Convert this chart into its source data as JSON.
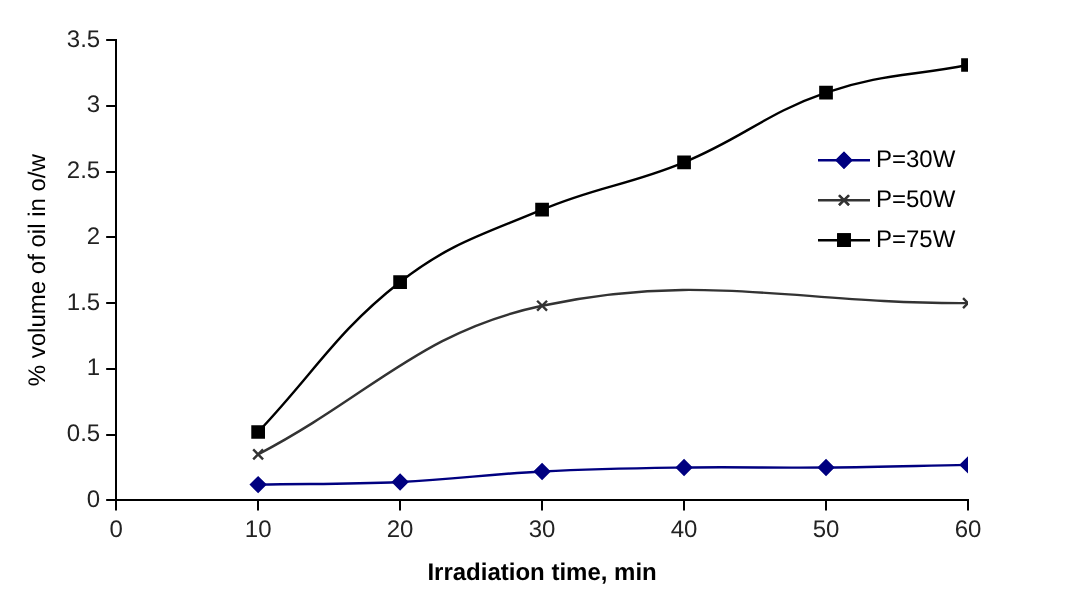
{
  "chart_data": {
    "type": "line",
    "xlabel": "Irradiation time, min",
    "ylabel": "% volume of oil in o/w",
    "x": [
      10,
      20,
      30,
      40,
      50,
      60
    ],
    "series": [
      {
        "name": "P=30W",
        "color": "#000080",
        "marker": "diamond",
        "values": [
          0.12,
          0.14,
          0.22,
          0.25,
          0.25,
          0.27
        ]
      },
      {
        "name": "P=50W",
        "color": "#333333",
        "marker": "cross",
        "x": [
          10,
          30,
          60
        ],
        "values": [
          0.35,
          1.48,
          1.5
        ]
      },
      {
        "name": "P=75W",
        "color": "#000000",
        "marker": "square",
        "values": [
          0.52,
          1.66,
          2.21,
          2.57,
          3.1,
          3.31
        ]
      }
    ],
    "xlim": [
      0,
      60
    ],
    "xticks": [
      0,
      10,
      20,
      30,
      40,
      50,
      60
    ],
    "ylim": [
      0,
      3.5
    ],
    "yticks": [
      0,
      0.5,
      1,
      1.5,
      2,
      2.5,
      3,
      3.5
    ],
    "grid": false,
    "legend": "right"
  }
}
